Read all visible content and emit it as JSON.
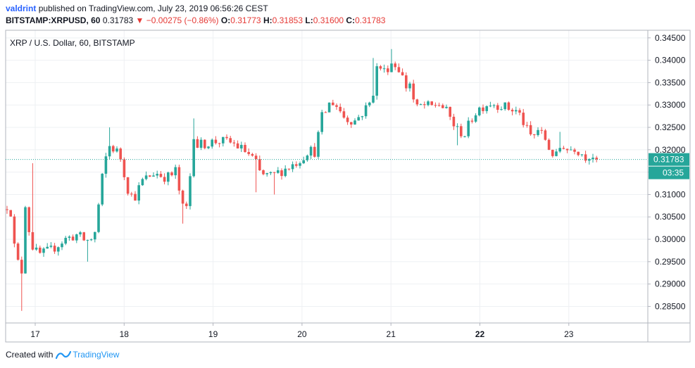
{
  "header": {
    "author": "valdrint",
    "published_text": "published on TradingView.com, July 23, 2019 06:56:26 CEST",
    "symbol": "BITSTAMP:XRPUSD, 60",
    "last": "0.31783",
    "change_arrow": "▼",
    "change": "−0.00275 (−0.86%)",
    "o_label": "O:",
    "o_value": "0.31773",
    "h_label": "H:",
    "h_value": "0.31853",
    "l_label": "L:",
    "l_value": "0.31600",
    "c_label": "C:",
    "c_value": "0.31783"
  },
  "footer": {
    "created_with": "Created with",
    "brand": "TradingView"
  },
  "chart_data": {
    "type": "candlestick",
    "title": "XRP / U.S. Dollar, 60, BITSTAMP",
    "x_ticks": [
      "17",
      "18",
      "19",
      "20",
      "21",
      "22",
      "23"
    ],
    "y_ticks": [
      "0.34500",
      "0.34000",
      "0.33500",
      "0.33000",
      "0.32500",
      "0.32000",
      "0.31500",
      "0.31000",
      "0.30500",
      "0.30000",
      "0.29500",
      "0.29000",
      "0.28500"
    ],
    "price_label": "0.31783",
    "countdown_label": "03:35",
    "ylim": [
      0.2813,
      0.3467
    ],
    "up_color": "#26a69a",
    "down_color": "#ef5350",
    "anchor_path": [
      [
        0,
        0.3075
      ],
      [
        4,
        0.308
      ],
      [
        12,
        0.296
      ],
      [
        22,
        0.2925
      ],
      [
        26,
        0.308
      ],
      [
        34,
        0.299
      ],
      [
        44,
        0.2965
      ],
      [
        62,
        0.2975
      ],
      [
        82,
        0.3
      ],
      [
        100,
        0.301
      ],
      [
        112,
        0.2995
      ],
      [
        124,
        0.3005
      ],
      [
        138,
        0.317
      ],
      [
        146,
        0.321
      ],
      [
        160,
        0.319
      ],
      [
        172,
        0.311
      ],
      [
        180,
        0.309
      ],
      [
        192,
        0.313
      ],
      [
        210,
        0.315
      ],
      [
        222,
        0.314
      ],
      [
        232,
        0.314
      ],
      [
        240,
        0.3155
      ],
      [
        248,
        0.307
      ],
      [
        256,
        0.307
      ],
      [
        266,
        0.325
      ],
      [
        270,
        0.321
      ],
      [
        300,
        0.322
      ],
      [
        320,
        0.3215
      ],
      [
        340,
        0.3195
      ],
      [
        352,
        0.3175
      ],
      [
        360,
        0.3145
      ],
      [
        376,
        0.314
      ],
      [
        386,
        0.315
      ],
      [
        404,
        0.3165
      ],
      [
        418,
        0.318
      ],
      [
        428,
        0.32
      ],
      [
        438,
        0.3195
      ],
      [
        446,
        0.327
      ],
      [
        454,
        0.329
      ],
      [
        460,
        0.331
      ],
      [
        470,
        0.3295
      ],
      [
        480,
        0.327
      ],
      [
        494,
        0.3265
      ],
      [
        506,
        0.3285
      ],
      [
        518,
        0.331
      ],
      [
        526,
        0.339
      ],
      [
        536,
        0.3375
      ],
      [
        546,
        0.3395
      ],
      [
        558,
        0.338
      ],
      [
        566,
        0.334
      ],
      [
        572,
        0.335
      ],
      [
        580,
        0.329
      ],
      [
        590,
        0.33
      ],
      [
        602,
        0.3295
      ],
      [
        612,
        0.3305
      ],
      [
        622,
        0.329
      ],
      [
        630,
        0.327
      ],
      [
        638,
        0.3245
      ],
      [
        650,
        0.3235
      ],
      [
        660,
        0.327
      ],
      [
        668,
        0.329
      ],
      [
        684,
        0.3305
      ],
      [
        700,
        0.33
      ],
      [
        716,
        0.329
      ],
      [
        726,
        0.3285
      ],
      [
        738,
        0.3245
      ],
      [
        746,
        0.3225
      ],
      [
        754,
        0.3245
      ],
      [
        764,
        0.3225
      ],
      [
        772,
        0.3195
      ],
      [
        780,
        0.3185
      ],
      [
        788,
        0.3215
      ],
      [
        796,
        0.32
      ],
      [
        806,
        0.3205
      ],
      [
        814,
        0.3195
      ],
      [
        822,
        0.3185
      ],
      [
        830,
        0.319
      ],
      [
        838,
        0.31783
      ]
    ],
    "wick_spikes": [
      [
        22,
        0.284
      ],
      [
        38,
        0.317
      ],
      [
        250,
        0.3035
      ],
      [
        548,
        0.3425
      ],
      [
        522,
        0.3405
      ],
      [
        356,
        0.3105
      ],
      [
        380,
        0.31
      ],
      [
        112,
        0.295
      ],
      [
        144,
        0.325
      ],
      [
        640,
        0.321
      ],
      [
        266,
        0.327
      ],
      [
        786,
        0.324
      ]
    ]
  }
}
